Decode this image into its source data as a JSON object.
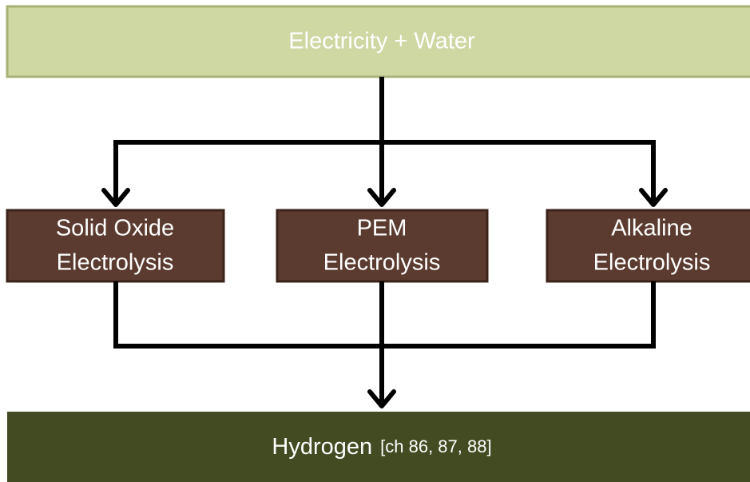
{
  "input": {
    "label": "Electricity + Water"
  },
  "processes": [
    {
      "lines": [
        "Solid Oxide",
        "Electrolysis"
      ]
    },
    {
      "lines": [
        "PEM",
        "Electrolysis"
      ]
    },
    {
      "lines": [
        "Alkaline",
        "Electrolysis"
      ]
    }
  ],
  "output": {
    "label": "Hydrogen",
    "note": "[ch 86, 87, 88]"
  }
}
